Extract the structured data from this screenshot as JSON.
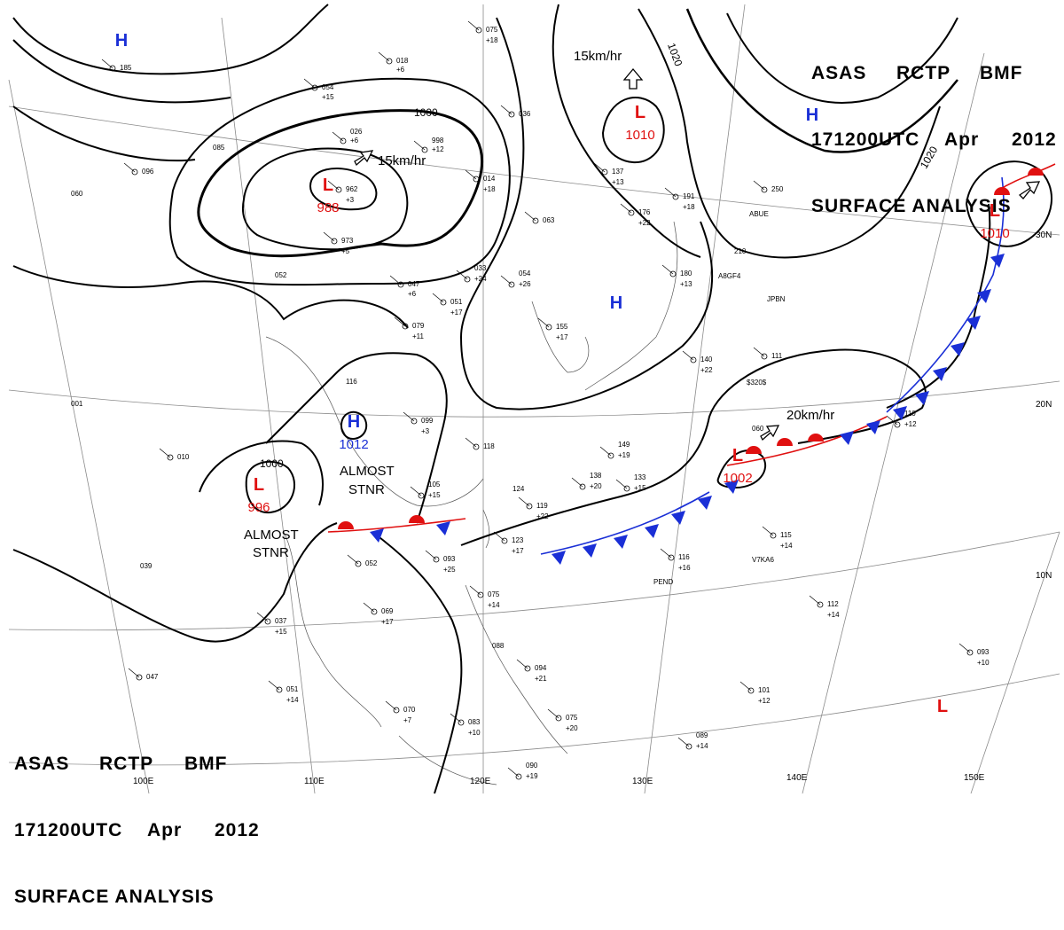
{
  "header": {
    "line1": [
      "ASAS",
      "RCTP",
      "BMF"
    ],
    "line2": [
      "171200UTC",
      "Apr",
      "2012"
    ],
    "line3": "SURFACE ANALYSIS"
  },
  "colors": {
    "high": "#1a2fd6",
    "low": "#e01010",
    "isobar": "#000000",
    "grid": "#888888",
    "coast": "#555555"
  },
  "lon_labels": [
    "110E",
    "120E",
    "130E",
    "140E",
    "150E",
    "100E"
  ],
  "lat_labels": [
    "30N",
    "20N",
    "10N"
  ],
  "pressure_systems": [
    {
      "type": "H",
      "pressure": ""
    },
    {
      "type": "L",
      "pressure": "988"
    },
    {
      "type": "L",
      "pressure": "1010"
    },
    {
      "type": "H",
      "pressure": ""
    },
    {
      "type": "L",
      "pressure": "1010"
    },
    {
      "type": "H",
      "pressure": ""
    },
    {
      "type": "H",
      "pressure": "1012"
    },
    {
      "type": "L",
      "pressure": "996"
    },
    {
      "type": "L",
      "pressure": "1002"
    },
    {
      "type": "L",
      "pressure": ""
    }
  ],
  "isobar_labels": [
    "1000",
    "1020",
    "1020",
    "1000"
  ],
  "motion_labels": [
    "15km/hr",
    "15km/hr",
    "20km/hr"
  ],
  "notes": [
    "ALMOST",
    "STNR",
    "ALMOST",
    "STNR"
  ],
  "stations": [
    {
      "label": "075"
    },
    {
      "label": "+18"
    },
    {
      "label": "054"
    },
    {
      "label": "+15"
    },
    {
      "label": "018"
    },
    {
      "label": "+6"
    },
    {
      "label": "036"
    },
    {
      "label": "026"
    },
    {
      "label": "+6"
    },
    {
      "label": "998"
    },
    {
      "label": "+12"
    },
    {
      "label": "085"
    },
    {
      "label": "096"
    },
    {
      "label": "060"
    },
    {
      "label": "962"
    },
    {
      "label": "+3"
    },
    {
      "label": "973"
    },
    {
      "label": "+5"
    },
    {
      "label": "014"
    },
    {
      "label": "+18"
    },
    {
      "label": "063"
    },
    {
      "label": "033"
    },
    {
      "label": "+24"
    },
    {
      "label": "054"
    },
    {
      "label": "+26"
    },
    {
      "label": "052"
    },
    {
      "label": "047"
    },
    {
      "label": "+6"
    },
    {
      "label": "051"
    },
    {
      "label": "+17"
    },
    {
      "label": "079"
    },
    {
      "label": "+11"
    },
    {
      "label": "155"
    },
    {
      "label": "+17"
    },
    {
      "label": "137"
    },
    {
      "label": "+13"
    },
    {
      "label": "176"
    },
    {
      "label": "+22"
    },
    {
      "label": "191"
    },
    {
      "label": "+18"
    },
    {
      "label": "250"
    },
    {
      "label": "210"
    },
    {
      "label": "180"
    },
    {
      "label": "+13"
    },
    {
      "label": "140"
    },
    {
      "label": "+22"
    },
    {
      "label": "111"
    },
    {
      "label": "116"
    },
    {
      "label": "099"
    },
    {
      "label": "+3"
    },
    {
      "label": "118"
    },
    {
      "label": "149"
    },
    {
      "label": "+19"
    },
    {
      "label": "138"
    },
    {
      "label": "+20"
    },
    {
      "label": "133"
    },
    {
      "label": "+15"
    },
    {
      "label": "060"
    },
    {
      "label": "010"
    },
    {
      "label": "105"
    },
    {
      "label": "+15"
    },
    {
      "label": "124"
    },
    {
      "label": "119"
    },
    {
      "label": "+22"
    },
    {
      "label": "123"
    },
    {
      "label": "+17"
    },
    {
      "label": "093"
    },
    {
      "label": "+25"
    },
    {
      "label": "052"
    },
    {
      "label": "039"
    },
    {
      "label": "069"
    },
    {
      "label": "+17"
    },
    {
      "label": "037"
    },
    {
      "label": "+15"
    },
    {
      "label": "075"
    },
    {
      "label": "+14"
    },
    {
      "label": "116"
    },
    {
      "label": "+16"
    },
    {
      "label": "115"
    },
    {
      "label": "+14"
    },
    {
      "label": "112"
    },
    {
      "label": "+14"
    },
    {
      "label": "093"
    },
    {
      "label": "+10"
    },
    {
      "label": "094"
    },
    {
      "label": "+21"
    },
    {
      "label": "101"
    },
    {
      "label": "+12"
    },
    {
      "label": "075"
    },
    {
      "label": "+20"
    },
    {
      "label": "083"
    },
    {
      "label": "+10"
    },
    {
      "label": "070"
    },
    {
      "label": "+7"
    },
    {
      "label": "051"
    },
    {
      "label": "+14"
    },
    {
      "label": "047"
    },
    {
      "label": "089"
    },
    {
      "label": "+14"
    },
    {
      "label": "090"
    },
    {
      "label": "+19"
    },
    {
      "label": "001"
    },
    {
      "label": "185"
    },
    {
      "label": "110"
    },
    {
      "label": "+12"
    },
    {
      "label": "088"
    }
  ],
  "ship_callsigns": [
    "ABUE",
    "A8GF4",
    "JPBN",
    "$320$",
    "PEND",
    "V7KA6"
  ]
}
